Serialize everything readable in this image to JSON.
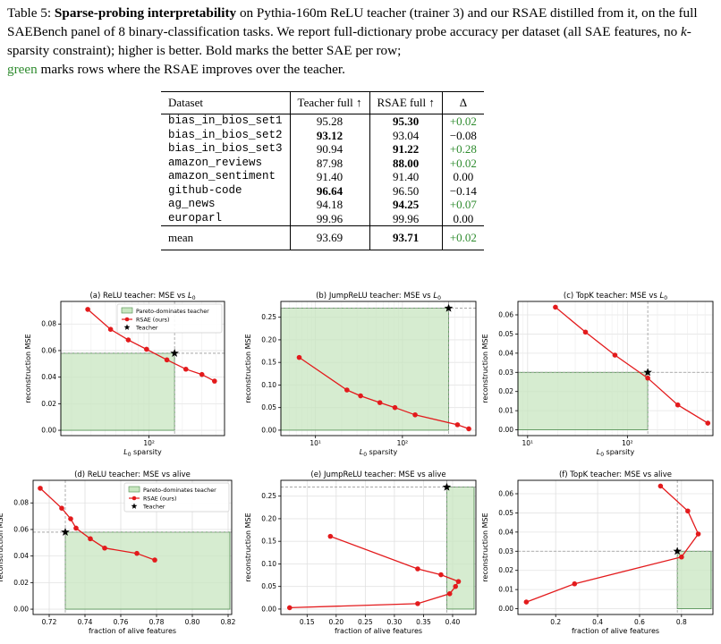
{
  "caption": {
    "label": "Table 5:",
    "title": "Sparse-probing interpretability",
    "text1": " on Pythia-160m ReLU teacher (trainer 3) and our RSAE distilled from it, on the full SAEBench panel of ",
    "num_tasks": "8",
    "text2": " binary-classification tasks. We report full-dictionary probe accuracy per dataset (all SAE features, no ",
    "k_word": "k",
    "text3": "-sparsity constraint); higher is better. Bold marks the better SAE per row; ",
    "green_word": "green",
    "text4": " marks rows where the RSAE improves over the teacher."
  },
  "table": {
    "headers": [
      "Dataset",
      "Teacher full ↑",
      "RSAE full ↑",
      "Δ"
    ],
    "rows": [
      {
        "dataset": "bias_in_bios_set1",
        "teacher": "95.28",
        "rsae": "95.30",
        "delta": "+0.02",
        "better": "rsae",
        "green": true
      },
      {
        "dataset": "bias_in_bios_set2",
        "teacher": "93.12",
        "rsae": "93.04",
        "delta": "−0.08",
        "better": "teacher",
        "green": false
      },
      {
        "dataset": "bias_in_bios_set3",
        "teacher": "90.94",
        "rsae": "91.22",
        "delta": "+0.28",
        "better": "rsae",
        "green": true
      },
      {
        "dataset": "amazon_reviews",
        "teacher": "87.98",
        "rsae": "88.00",
        "delta": "+0.02",
        "better": "rsae",
        "green": true
      },
      {
        "dataset": "amazon_sentiment",
        "teacher": "91.40",
        "rsae": "91.40",
        "delta": "0.00",
        "better": "none",
        "green": false
      },
      {
        "dataset": "github-code",
        "teacher": "96.64",
        "rsae": "96.50",
        "delta": "−0.14",
        "better": "teacher",
        "green": false
      },
      {
        "dataset": "ag_news",
        "teacher": "94.18",
        "rsae": "94.25",
        "delta": "+0.07",
        "better": "rsae",
        "green": true
      },
      {
        "dataset": "europarl",
        "teacher": "99.96",
        "rsae": "99.96",
        "delta": "0.00",
        "better": "none",
        "green": false
      }
    ],
    "mean": {
      "dataset": "mean",
      "teacher": "93.69",
      "rsae": "93.71",
      "delta": "+0.02",
      "better": "rsae",
      "green": true
    }
  },
  "colors": {
    "rsae_line": "#e31a1c",
    "pareto_fill": "#c8e6c0",
    "pareto_edge": "#4a8a4a",
    "green_text": "#2e8b2e"
  },
  "legend_labels": {
    "pareto": "Pareto-dominates teacher",
    "rsae": "RSAE (ours)",
    "teacher": "Teacher"
  },
  "chart_data": [
    {
      "type": "line",
      "title": "(a) ReLU teacher: MSE vs L0",
      "xlabel": "L0 sparsity",
      "ylabel": "reconstruction MSE",
      "xscale": "log",
      "xlim": [
        16,
        480
      ],
      "ylim": [
        -0.004,
        0.097
      ],
      "xticks": [
        {
          "v": 100,
          "label": "10²"
        }
      ],
      "yticks": [
        0,
        0.02,
        0.04,
        0.06,
        0.08
      ],
      "legend": "top-right",
      "rsae_x": [
        28,
        45,
        65,
        95,
        145,
        215,
        300,
        390
      ],
      "rsae_y": [
        0.091,
        0.076,
        0.068,
        0.061,
        0.053,
        0.046,
        0.042,
        0.037
      ],
      "teacher_x": 170,
      "teacher_y": 0.058
    },
    {
      "type": "line",
      "title": "(b) JumpReLU teacher: MSE vs L0",
      "xlabel": "L0 sparsity",
      "ylabel": "reconstruction MSE",
      "xscale": "log",
      "xlim": [
        4,
        700
      ],
      "ylim": [
        -0.012,
        0.285
      ],
      "xticks": [
        {
          "v": 10,
          "label": "10¹"
        },
        {
          "v": 100,
          "label": "10²"
        }
      ],
      "yticks": [
        0,
        0.05,
        0.1,
        0.15,
        0.2,
        0.25
      ],
      "rsae_x": [
        6.5,
        23,
        33,
        55,
        82,
        140,
        430,
        580
      ],
      "rsae_y": [
        0.161,
        0.089,
        0.076,
        0.061,
        0.05,
        0.034,
        0.012,
        0.003
      ],
      "teacher_x": 340,
      "teacher_y": 0.27
    },
    {
      "type": "line",
      "title": "(c) TopK teacher: MSE vs L0",
      "xlabel": "L0 sparsity",
      "ylabel": "reconstruction MSE",
      "xscale": "log",
      "xlim": [
        8,
        720
      ],
      "ylim": [
        -0.003,
        0.067
      ],
      "xticks": [
        {
          "v": 10,
          "label": "10¹"
        },
        {
          "v": 100,
          "label": "10²"
        }
      ],
      "yticks": [
        0,
        0.01,
        0.02,
        0.03,
        0.04,
        0.05,
        0.06
      ],
      "rsae_x": [
        19,
        38,
        75,
        160,
        320,
        640
      ],
      "rsae_y": [
        0.064,
        0.051,
        0.039,
        0.027,
        0.013,
        0.0035
      ],
      "teacher_x": 160,
      "teacher_y": 0.03
    },
    {
      "type": "line",
      "title": "(d) ReLU teacher: MSE vs alive",
      "xlabel": "fraction of alive features",
      "ylabel": "reconstruction MSE",
      "xscale": "linear",
      "xlim": [
        0.711,
        0.822
      ],
      "ylim": [
        -0.004,
        0.097
      ],
      "xticks": [
        {
          "v": 0.72,
          "label": "0.72"
        },
        {
          "v": 0.74,
          "label": "0.74"
        },
        {
          "v": 0.76,
          "label": "0.76"
        },
        {
          "v": 0.78,
          "label": "0.78"
        },
        {
          "v": 0.8,
          "label": "0.80"
        },
        {
          "v": 0.82,
          "label": "0.82"
        }
      ],
      "yticks": [
        0,
        0.02,
        0.04,
        0.06,
        0.08
      ],
      "legend": "top-right",
      "rsae_x": [
        0.715,
        0.727,
        0.732,
        0.735,
        0.743,
        0.751,
        0.769,
        0.779
      ],
      "rsae_y": [
        0.091,
        0.076,
        0.068,
        0.061,
        0.053,
        0.046,
        0.042,
        0.037
      ],
      "teacher_x": 0.729,
      "teacher_y": 0.058
    },
    {
      "type": "line",
      "title": "(e) JumpReLU teacher: MSE vs alive",
      "xlabel": "fraction of alive features",
      "ylabel": "reconstruction MSE",
      "xscale": "linear",
      "xlim": [
        0.105,
        0.44
      ],
      "ylim": [
        -0.012,
        0.285
      ],
      "xticks": [
        {
          "v": 0.15,
          "label": "0.15"
        },
        {
          "v": 0.2,
          "label": "0.20"
        },
        {
          "v": 0.25,
          "label": "0.25"
        },
        {
          "v": 0.3,
          "label": "0.30"
        },
        {
          "v": 0.35,
          "label": "0.35"
        },
        {
          "v": 0.4,
          "label": "0.40"
        }
      ],
      "yticks": [
        0,
        0.05,
        0.1,
        0.15,
        0.2,
        0.25
      ],
      "rsae_x": [
        0.19,
        0.34,
        0.38,
        0.41,
        0.405,
        0.395,
        0.34,
        0.12
      ],
      "rsae_y": [
        0.161,
        0.089,
        0.076,
        0.061,
        0.05,
        0.034,
        0.012,
        0.003
      ],
      "teacher_x": 0.39,
      "teacher_y": 0.27
    },
    {
      "type": "line",
      "title": "(f) TopK teacher: MSE vs alive",
      "xlabel": "fraction of alive features",
      "ylabel": "reconstruction MSE",
      "xscale": "linear",
      "xlim": [
        0.02,
        0.95
      ],
      "ylim": [
        -0.003,
        0.067
      ],
      "xticks": [
        {
          "v": 0.2,
          "label": "0.2"
        },
        {
          "v": 0.4,
          "label": "0.4"
        },
        {
          "v": 0.6,
          "label": "0.6"
        },
        {
          "v": 0.8,
          "label": "0.8"
        }
      ],
      "yticks": [
        0,
        0.01,
        0.02,
        0.03,
        0.04,
        0.05,
        0.06
      ],
      "rsae_x": [
        0.7,
        0.83,
        0.88,
        0.8,
        0.29,
        0.06
      ],
      "rsae_y": [
        0.064,
        0.051,
        0.039,
        0.027,
        0.013,
        0.0035
      ],
      "teacher_x": 0.78,
      "teacher_y": 0.03
    }
  ]
}
